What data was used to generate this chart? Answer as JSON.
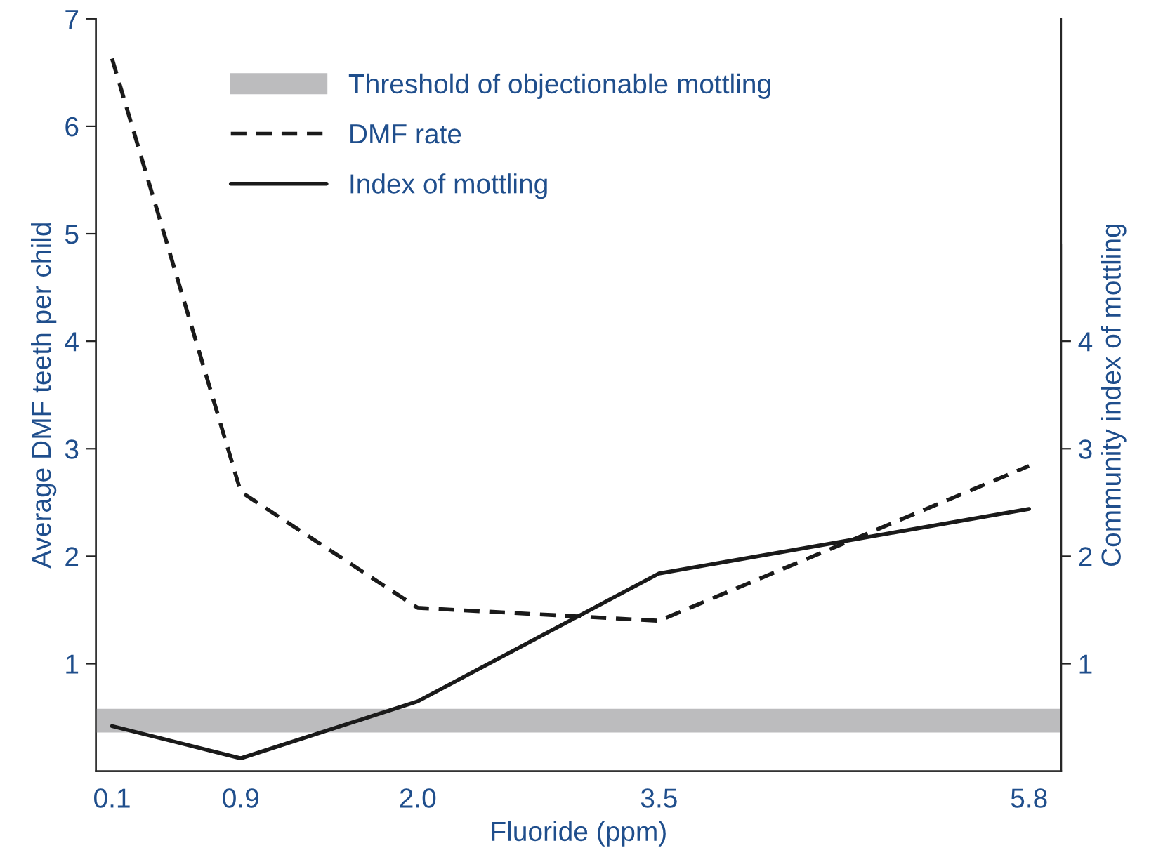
{
  "chart_data": {
    "type": "line",
    "xlabel": "Fluoride (ppm)",
    "ylabel": "Average DMF teeth per child",
    "y2label": "Community index of mottling",
    "x": [
      0.1,
      0.9,
      2.0,
      3.5,
      5.8
    ],
    "xlim": [
      0,
      6.0
    ],
    "xticks": [
      0.1,
      0.9,
      {
        "value": 2,
        "label": "2.0"
      },
      3.5,
      5.8
    ],
    "ylim": [
      0,
      7
    ],
    "yticks": [
      1,
      2,
      3,
      4,
      5,
      6,
      7
    ],
    "y2lim": [
      0,
      7
    ],
    "y2ticks": [
      1,
      2,
      3,
      4
    ],
    "series": [
      {
        "name": "DMF rate",
        "color": "#1a1a1a",
        "values": [
          6.63,
          2.6,
          1.52,
          1.4,
          2.84
        ],
        "line_style": "dashed"
      },
      {
        "name": "Index of mottling",
        "color": "#1a1a1a",
        "values": [
          0.42,
          0.12,
          0.65,
          1.84,
          2.44
        ],
        "line_style": "solid",
        "axis": "y2"
      }
    ],
    "bands": [
      {
        "axis": "y2",
        "from": 0.36,
        "to": 0.58,
        "label": "Threshold of objectionable mottling",
        "color": "#bcbcbe"
      }
    ],
    "grid": false,
    "legend": "top",
    "marker": "none"
  }
}
